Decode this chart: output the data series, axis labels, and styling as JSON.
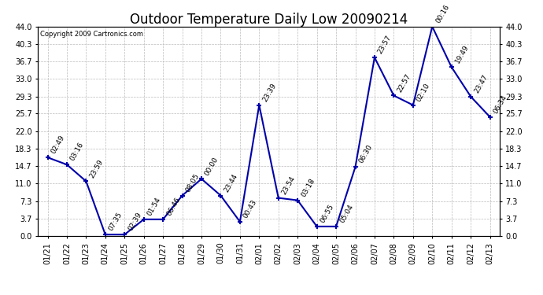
{
  "title": "Outdoor Temperature Daily Low 20090214",
  "copyright": "Copyright 2009 Cartronics.com",
  "line_color": "#0000AA",
  "background_color": "#ffffff",
  "grid_color": "#bbbbbb",
  "x_labels": [
    "01/21",
    "01/22",
    "01/23",
    "01/24",
    "01/25",
    "01/26",
    "01/27",
    "01/28",
    "01/29",
    "01/30",
    "01/31",
    "02/01",
    "02/02",
    "02/03",
    "02/04",
    "02/05",
    "02/06",
    "02/07",
    "02/08",
    "02/09",
    "02/10",
    "02/11",
    "02/12",
    "02/13"
  ],
  "y_values": [
    16.5,
    15.0,
    11.5,
    0.3,
    0.3,
    3.5,
    3.5,
    8.5,
    12.0,
    8.5,
    3.0,
    27.5,
    8.0,
    7.5,
    2.0,
    2.0,
    14.5,
    37.5,
    29.5,
    27.5,
    44.0,
    35.5,
    29.3,
    25.0
  ],
  "point_labels": [
    "02:49",
    "03:16",
    "23:59",
    "07:35",
    "02:39",
    "01:54",
    "06:46",
    "08:05",
    "00:00",
    "23:44",
    "00:43",
    "23:39",
    "23:54",
    "03:18",
    "06:55",
    "05:04",
    "06:30",
    "23:57",
    "22:57",
    "02:10",
    "00:16",
    "19:49",
    "23:47",
    "06:34"
  ],
  "yticks": [
    0.0,
    3.7,
    7.3,
    11.0,
    14.7,
    18.3,
    22.0,
    25.7,
    29.3,
    33.0,
    36.7,
    40.3,
    44.0
  ],
  "ylim": [
    0.0,
    44.0
  ],
  "title_fontsize": 12,
  "label_fontsize": 7,
  "point_label_fontsize": 6.5,
  "tick_label_fontsize": 7,
  "marker": "+"
}
